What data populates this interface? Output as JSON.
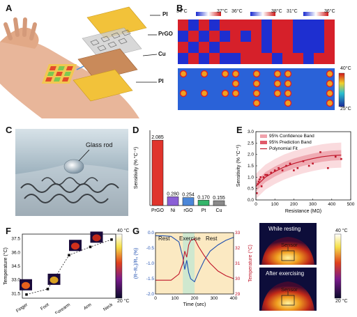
{
  "panels": {
    "A": {
      "label": "A",
      "layers": [
        "PI",
        "PrGO",
        "Cu",
        "PI"
      ]
    },
    "B": {
      "label": "B",
      "ranges": [
        "34°C",
        "37°C",
        "36°C",
        "38°C",
        "31°C",
        "36°C"
      ],
      "scale_max": "40°C",
      "scale_min": "25°C"
    },
    "C": {
      "label": "C",
      "annotation": "Glass rod"
    },
    "D": {
      "label": "D"
    },
    "E": {
      "label": "E"
    },
    "F": {
      "label": "F",
      "scale_max": "40 °C",
      "scale_min": "20 °C"
    },
    "G": {
      "label": "G",
      "phases": [
        "Rest",
        "Exercise",
        "Rest"
      ],
      "thermal": {
        "title_top": "While resting",
        "title_bottom": "After exercising",
        "sensor_label": "Sensor",
        "scale_max": "40 °C",
        "scale_min": "20 °C"
      }
    }
  },
  "chart_data": [
    {
      "id": "D",
      "type": "bar",
      "categories": [
        "PrGO",
        "Ni",
        "rGO",
        "Pt",
        "Cu"
      ],
      "values": [
        2.085,
        0.28,
        0.254,
        0.17,
        0.155
      ],
      "value_labels": [
        "2.085",
        "0.280",
        "0.254",
        "0.170",
        "0.155"
      ],
      "colors": [
        "#e0342c",
        "#8a5fd6",
        "#4b86d8",
        "#35b56a",
        "#8a8a8a"
      ],
      "ylabel": "Sensitivity (% °C⁻¹)",
      "ylim": [
        0,
        2.4
      ]
    },
    {
      "id": "E",
      "type": "scatter",
      "xlabel": "Resistance (MΩ)",
      "ylabel": "Sensitivity (% °C⁻¹)",
      "xlim": [
        0,
        500
      ],
      "ylim": [
        0,
        3.0
      ],
      "xticks": [
        0,
        100,
        200,
        300,
        400,
        500
      ],
      "yticks": [
        0.0,
        0.5,
        1.0,
        1.5,
        2.0,
        2.5,
        3.0
      ],
      "legend": [
        "95% Confidence Band",
        "95% Prediction Band",
        "Polynomial Fit"
      ],
      "points": [
        [
          5,
          0.3
        ],
        [
          10,
          0.7
        ],
        [
          15,
          0.8
        ],
        [
          20,
          0.9
        ],
        [
          25,
          1.0
        ],
        [
          30,
          0.6
        ],
        [
          40,
          1.0
        ],
        [
          50,
          1.1
        ],
        [
          60,
          1.1
        ],
        [
          80,
          1.2
        ],
        [
          100,
          1.3
        ],
        [
          120,
          1.4
        ],
        [
          140,
          1.3
        ],
        [
          160,
          1.5
        ],
        [
          180,
          1.6
        ],
        [
          200,
          1.3
        ],
        [
          220,
          1.4
        ],
        [
          250,
          1.7
        ],
        [
          280,
          1.5
        ],
        [
          300,
          1.6
        ],
        [
          340,
          2.1
        ],
        [
          380,
          1.4
        ],
        [
          420,
          1.9
        ],
        [
          450,
          1.8
        ]
      ],
      "fit": [
        [
          0,
          0.6
        ],
        [
          50,
          1.0
        ],
        [
          100,
          1.25
        ],
        [
          150,
          1.45
        ],
        [
          200,
          1.6
        ],
        [
          250,
          1.72
        ],
        [
          300,
          1.82
        ],
        [
          350,
          1.9
        ],
        [
          400,
          1.95
        ],
        [
          450,
          1.97
        ]
      ]
    },
    {
      "id": "F",
      "type": "line",
      "categories": [
        "Finger",
        "Foot",
        "Forearm",
        "Arm",
        "Neck"
      ],
      "values": [
        31.4,
        32.0,
        35.7,
        36.6,
        37.4
      ],
      "ylabel": "Temperature (°C)",
      "yticks": [
        31.5,
        33.0,
        34.5,
        36.0,
        37.5
      ],
      "ylim": [
        31.0,
        38.0
      ]
    },
    {
      "id": "G",
      "type": "line",
      "xlabel": "Time (sec)",
      "ylabel": "(R−R₀)/R₀ (%)",
      "ylabel_right": "Temperature (°C)",
      "xlim": [
        0,
        400
      ],
      "ylim": [
        -2.0,
        0.0
      ],
      "ylim_right": [
        29,
        33
      ],
      "xticks": [
        0,
        100,
        200,
        300,
        400
      ],
      "yticks": [
        0.0,
        -0.5,
        -1.0,
        -1.5,
        -2.0
      ],
      "yticks_right": [
        29,
        30,
        31,
        32,
        33
      ],
      "series": [
        {
          "values_x": [
            0,
            40,
            80,
            120,
            140,
            150,
            160,
            170,
            180,
            200,
            220,
            250,
            280,
            320,
            360,
            400
          ],
          "values": [
            -0.1,
            -0.1,
            -0.12,
            -0.3,
            -0.8,
            -1.2,
            -0.9,
            -1.3,
            -1.5,
            -1.6,
            -1.3,
            -0.9,
            -0.6,
            -0.4,
            -0.25,
            -0.15
          ]
        },
        {
          "values_x": [
            0,
            40,
            80,
            120,
            140,
            150,
            160,
            170,
            180,
            200,
            220,
            250,
            280,
            320,
            360,
            400
          ],
          "values": [
            29.9,
            29.9,
            29.9,
            30.3,
            31.0,
            31.8,
            31.4,
            32.2,
            32.5,
            32.6,
            32.1,
            31.5,
            31.0,
            30.5,
            30.2,
            30.0
          ]
        }
      ]
    }
  ]
}
